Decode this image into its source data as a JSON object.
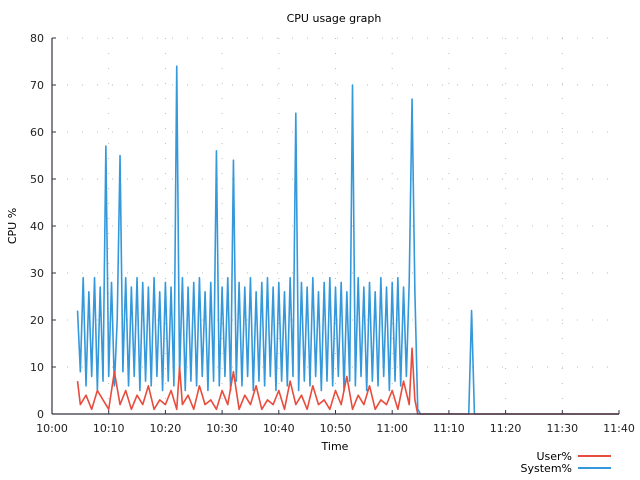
{
  "chart_data": {
    "type": "line",
    "title": "CPU usage graph",
    "xlabel": "Time",
    "ylabel": "CPU %",
    "ylim": [
      0,
      80
    ],
    "xlim": [
      "10:00",
      "11:40"
    ],
    "x_ticks": [
      "10:00",
      "10:10",
      "10:20",
      "10:30",
      "10:40",
      "10:50",
      "11:00",
      "11:10",
      "11:20",
      "11:30",
      "11:40"
    ],
    "y_ticks": [
      "0",
      "10",
      "20",
      "30",
      "40",
      "50",
      "60",
      "70",
      "80"
    ],
    "grid": true,
    "legend_position": "bottom-right",
    "series": [
      {
        "name": "User%",
        "color": "#e74c3c",
        "points": [
          [
            "10:04:30",
            7
          ],
          [
            "10:05:00",
            2
          ],
          [
            "10:06:00",
            4
          ],
          [
            "10:07:00",
            1
          ],
          [
            "10:08:00",
            5
          ],
          [
            "10:09:00",
            3
          ],
          [
            "10:10:00",
            1
          ],
          [
            "10:11:00",
            9
          ],
          [
            "10:12:00",
            2
          ],
          [
            "10:13:00",
            5
          ],
          [
            "10:14:00",
            1
          ],
          [
            "10:15:00",
            4
          ],
          [
            "10:16:00",
            2
          ],
          [
            "10:17:00",
            6
          ],
          [
            "10:18:00",
            1
          ],
          [
            "10:19:00",
            3
          ],
          [
            "10:20:00",
            2
          ],
          [
            "10:21:00",
            5
          ],
          [
            "10:22:00",
            1
          ],
          [
            "10:22:30",
            10
          ],
          [
            "10:23:00",
            2
          ],
          [
            "10:24:00",
            4
          ],
          [
            "10:25:00",
            1
          ],
          [
            "10:26:00",
            6
          ],
          [
            "10:27:00",
            2
          ],
          [
            "10:28:00",
            3
          ],
          [
            "10:29:00",
            1
          ],
          [
            "10:30:00",
            5
          ],
          [
            "10:31:00",
            2
          ],
          [
            "10:32:00",
            9
          ],
          [
            "10:33:00",
            1
          ],
          [
            "10:34:00",
            4
          ],
          [
            "10:35:00",
            2
          ],
          [
            "10:36:00",
            6
          ],
          [
            "10:37:00",
            1
          ],
          [
            "10:38:00",
            3
          ],
          [
            "10:39:00",
            2
          ],
          [
            "10:40:00",
            5
          ],
          [
            "10:41:00",
            1
          ],
          [
            "10:42:00",
            7
          ],
          [
            "10:43:00",
            2
          ],
          [
            "10:44:00",
            4
          ],
          [
            "10:45:00",
            1
          ],
          [
            "10:46:00",
            6
          ],
          [
            "10:47:00",
            2
          ],
          [
            "10:48:00",
            3
          ],
          [
            "10:49:00",
            1
          ],
          [
            "10:50:00",
            5
          ],
          [
            "10:51:00",
            2
          ],
          [
            "10:52:00",
            8
          ],
          [
            "10:53:00",
            1
          ],
          [
            "10:54:00",
            4
          ],
          [
            "10:55:00",
            2
          ],
          [
            "10:56:00",
            6
          ],
          [
            "10:57:00",
            1
          ],
          [
            "10:58:00",
            3
          ],
          [
            "10:59:00",
            2
          ],
          [
            "11:00:00",
            5
          ],
          [
            "11:01:00",
            1
          ],
          [
            "11:02:00",
            7
          ],
          [
            "11:03:00",
            2
          ],
          [
            "11:03:30",
            14
          ],
          [
            "11:04:00",
            3
          ],
          [
            "11:04:30",
            0
          ],
          [
            "11:10:00",
            0
          ],
          [
            "11:14:00",
            0
          ],
          [
            "11:20:00",
            0
          ],
          [
            "11:30:00",
            0
          ],
          [
            "11:40:00",
            0
          ]
        ]
      },
      {
        "name": "System%",
        "color": "#3498db",
        "points": [
          [
            "10:04:30",
            22
          ],
          [
            "10:05:00",
            9
          ],
          [
            "10:05:30",
            29
          ],
          [
            "10:06:00",
            6
          ],
          [
            "10:06:30",
            26
          ],
          [
            "10:07:00",
            8
          ],
          [
            "10:07:30",
            29
          ],
          [
            "10:08:00",
            5
          ],
          [
            "10:08:30",
            27
          ],
          [
            "10:09:00",
            7
          ],
          [
            "10:09:30",
            57
          ],
          [
            "10:10:00",
            8
          ],
          [
            "10:10:30",
            28
          ],
          [
            "10:11:00",
            6
          ],
          [
            "10:11:30",
            20
          ],
          [
            "10:12:00",
            55
          ],
          [
            "10:12:30",
            9
          ],
          [
            "10:13:00",
            29
          ],
          [
            "10:13:30",
            6
          ],
          [
            "10:14:00",
            27
          ],
          [
            "10:14:30",
            8
          ],
          [
            "10:15:00",
            29
          ],
          [
            "10:15:30",
            5
          ],
          [
            "10:16:00",
            28
          ],
          [
            "10:16:30",
            7
          ],
          [
            "10:17:00",
            27
          ],
          [
            "10:17:30",
            6
          ],
          [
            "10:18:00",
            29
          ],
          [
            "10:18:30",
            8
          ],
          [
            "10:19:00",
            26
          ],
          [
            "10:19:30",
            5
          ],
          [
            "10:20:00",
            28
          ],
          [
            "10:20:30",
            7
          ],
          [
            "10:21:00",
            27
          ],
          [
            "10:21:30",
            6
          ],
          [
            "10:22:00",
            74
          ],
          [
            "10:22:30",
            8
          ],
          [
            "10:23:00",
            29
          ],
          [
            "10:23:30",
            5
          ],
          [
            "10:24:00",
            27
          ],
          [
            "10:24:30",
            7
          ],
          [
            "10:25:00",
            28
          ],
          [
            "10:25:30",
            6
          ],
          [
            "10:26:00",
            29
          ],
          [
            "10:26:30",
            8
          ],
          [
            "10:27:00",
            26
          ],
          [
            "10:27:30",
            5
          ],
          [
            "10:28:00",
            28
          ],
          [
            "10:28:30",
            7
          ],
          [
            "10:29:00",
            56
          ],
          [
            "10:29:30",
            6
          ],
          [
            "10:30:00",
            27
          ],
          [
            "10:30:30",
            8
          ],
          [
            "10:31:00",
            29
          ],
          [
            "10:31:30",
            5
          ],
          [
            "10:32:00",
            54
          ],
          [
            "10:32:30",
            7
          ],
          [
            "10:33:00",
            28
          ],
          [
            "10:33:30",
            6
          ],
          [
            "10:34:00",
            27
          ],
          [
            "10:34:30",
            8
          ],
          [
            "10:35:00",
            29
          ],
          [
            "10:35:30",
            5
          ],
          [
            "10:36:00",
            26
          ],
          [
            "10:36:30",
            7
          ],
          [
            "10:37:00",
            28
          ],
          [
            "10:37:30",
            6
          ],
          [
            "10:38:00",
            29
          ],
          [
            "10:38:30",
            8
          ],
          [
            "10:39:00",
            27
          ],
          [
            "10:39:30",
            5
          ],
          [
            "10:40:00",
            28
          ],
          [
            "10:40:30",
            7
          ],
          [
            "10:41:00",
            26
          ],
          [
            "10:41:30",
            6
          ],
          [
            "10:42:00",
            29
          ],
          [
            "10:42:30",
            8
          ],
          [
            "10:43:00",
            64
          ],
          [
            "10:43:30",
            5
          ],
          [
            "10:44:00",
            28
          ],
          [
            "10:44:30",
            7
          ],
          [
            "10:45:00",
            27
          ],
          [
            "10:45:30",
            6
          ],
          [
            "10:46:00",
            29
          ],
          [
            "10:46:30",
            8
          ],
          [
            "10:47:00",
            26
          ],
          [
            "10:47:30",
            5
          ],
          [
            "10:48:00",
            28
          ],
          [
            "10:48:30",
            7
          ],
          [
            "10:49:00",
            29
          ],
          [
            "10:49:30",
            6
          ],
          [
            "10:50:00",
            27
          ],
          [
            "10:50:30",
            8
          ],
          [
            "10:51:00",
            28
          ],
          [
            "10:51:30",
            5
          ],
          [
            "10:52:00",
            26
          ],
          [
            "10:52:30",
            7
          ],
          [
            "10:53:00",
            70
          ],
          [
            "10:53:30",
            6
          ],
          [
            "10:54:00",
            29
          ],
          [
            "10:54:30",
            8
          ],
          [
            "10:55:00",
            27
          ],
          [
            "10:55:30",
            5
          ],
          [
            "10:56:00",
            28
          ],
          [
            "10:56:30",
            7
          ],
          [
            "10:57:00",
            26
          ],
          [
            "10:57:30",
            6
          ],
          [
            "10:58:00",
            29
          ],
          [
            "10:58:30",
            8
          ],
          [
            "10:59:00",
            27
          ],
          [
            "10:59:30",
            5
          ],
          [
            "11:00:00",
            28
          ],
          [
            "11:00:30",
            7
          ],
          [
            "11:01:00",
            29
          ],
          [
            "11:01:30",
            6
          ],
          [
            "11:02:00",
            27
          ],
          [
            "11:02:30",
            8
          ],
          [
            "11:03:00",
            28
          ],
          [
            "11:03:30",
            67
          ],
          [
            "11:04:00",
            26
          ],
          [
            "11:04:30",
            1
          ],
          [
            "11:05:00",
            0
          ],
          [
            "11:10:00",
            0
          ],
          [
            "11:13:30",
            0
          ],
          [
            "11:14:00",
            22
          ],
          [
            "11:14:30",
            0
          ],
          [
            "11:20:00",
            0
          ],
          [
            "11:30:00",
            0
          ],
          [
            "11:40:00",
            0
          ]
        ]
      }
    ]
  }
}
